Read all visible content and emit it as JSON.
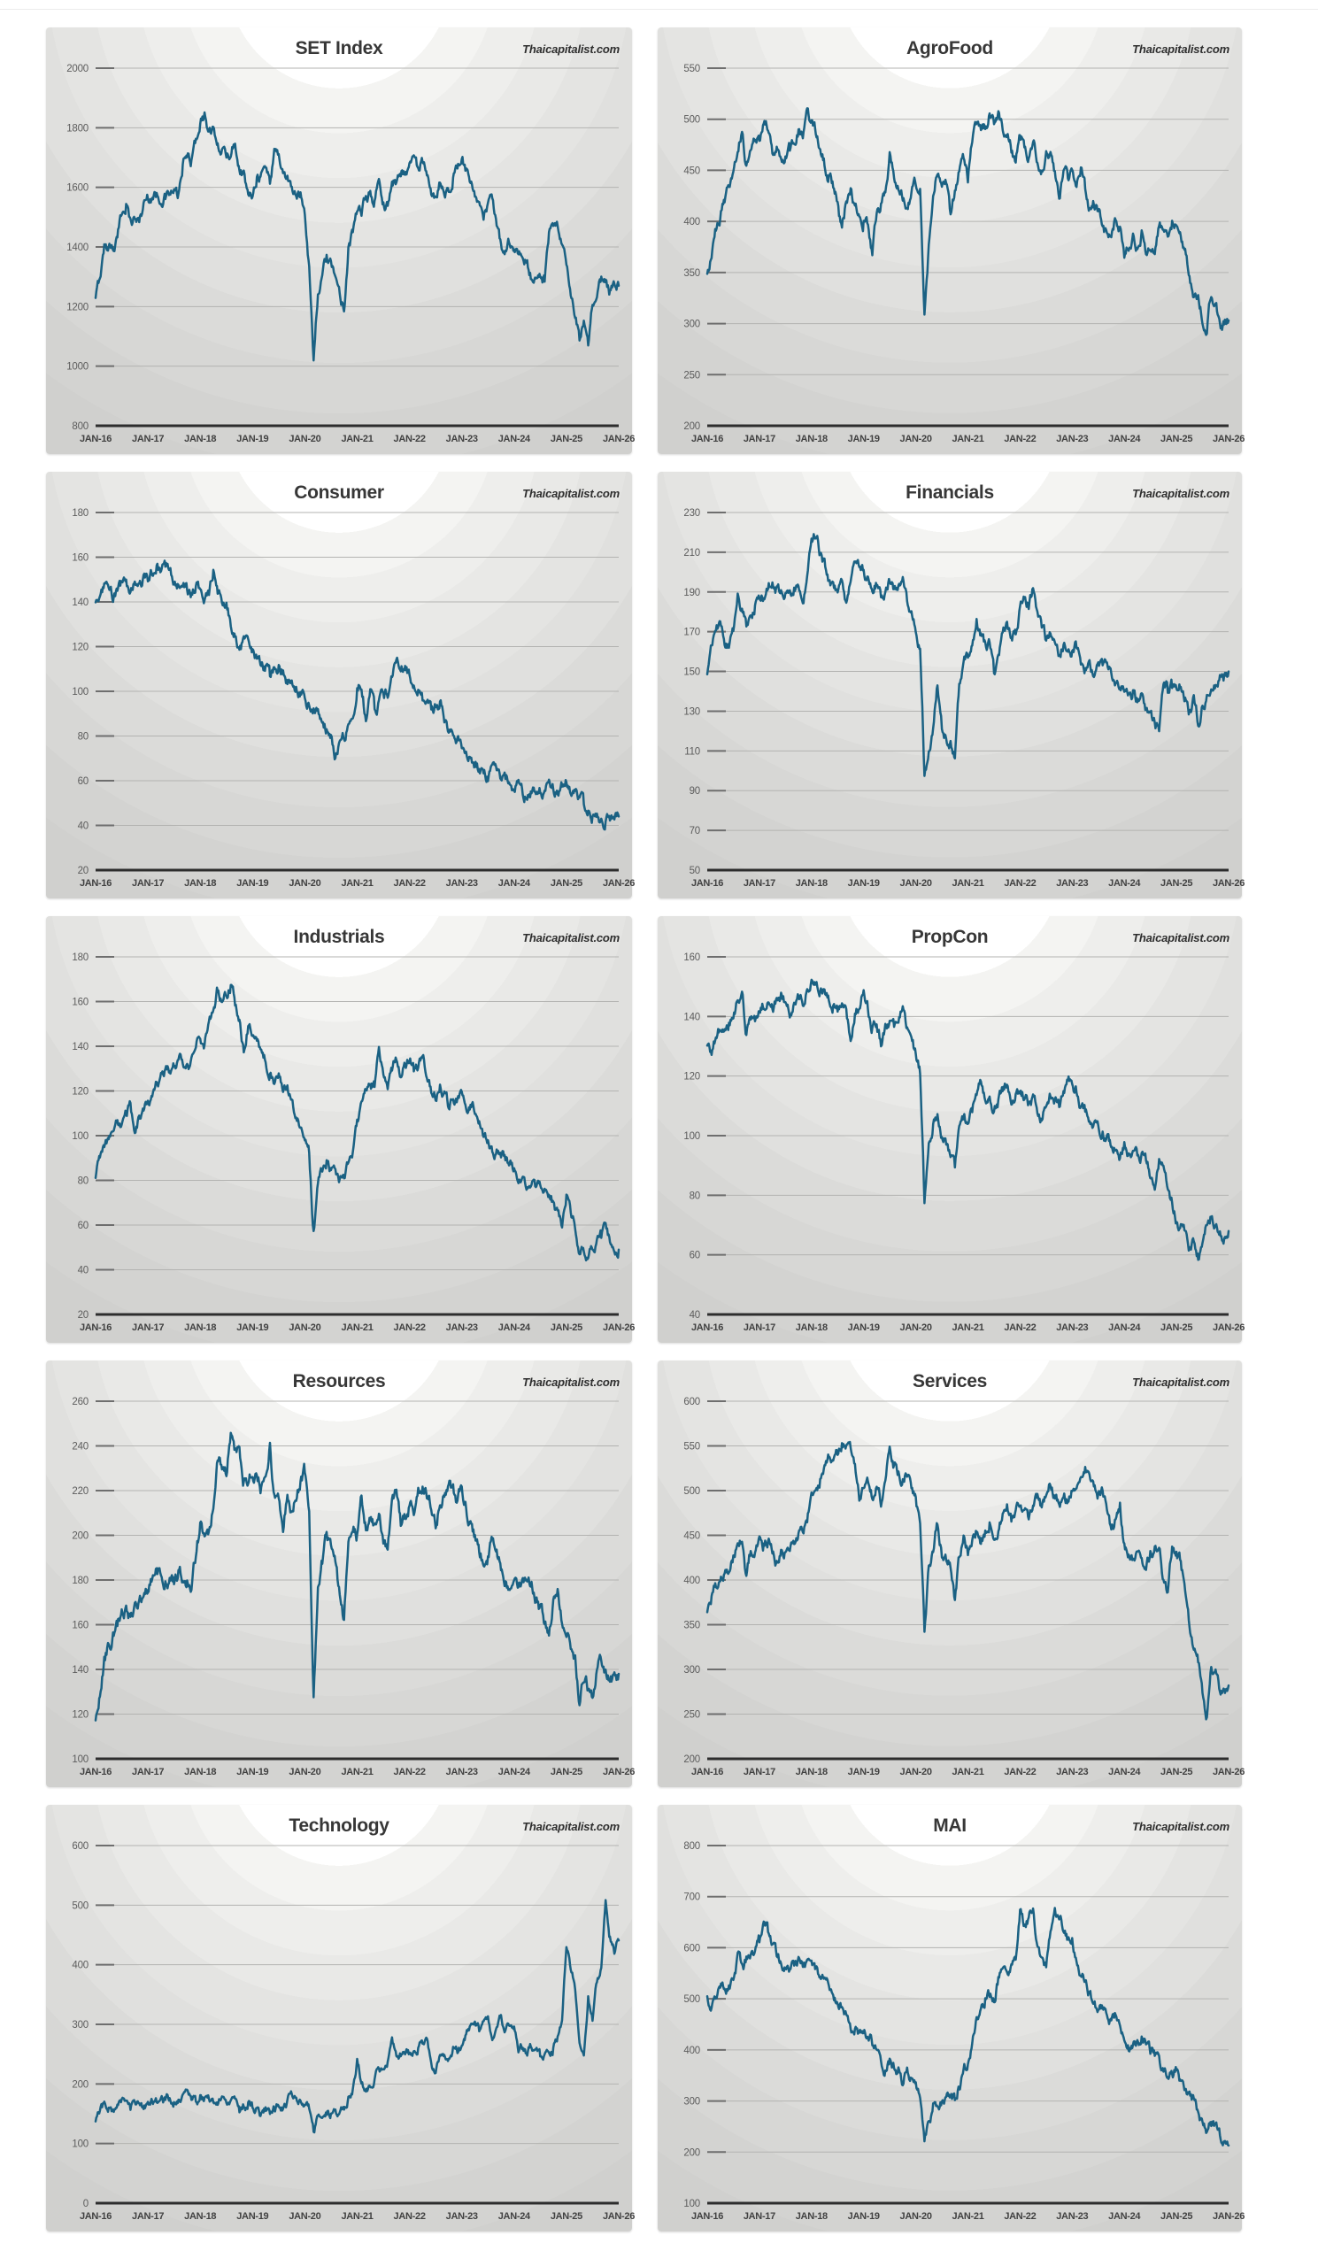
{
  "page": {
    "watermark": "Thaicapitalist.com"
  },
  "x_labels": [
    "JAN-16",
    "JAN-17",
    "JAN-18",
    "JAN-19",
    "JAN-20",
    "JAN-21",
    "JAN-22",
    "JAN-23",
    "JAN-24",
    "JAN-25",
    "JAN-26"
  ],
  "line_color": "#1a6183",
  "chart_data": [
    {
      "type": "line",
      "title": "SET Index",
      "ylim": [
        800,
        2000
      ],
      "ystep": 200,
      "noise": 15,
      "x_start": "JAN-16",
      "x_end": "JAN-26",
      "x_unit": "month",
      "monthly_values": [
        1220,
        1300,
        1400,
        1405,
        1400,
        1430,
        1510,
        1550,
        1480,
        1500,
        1490,
        1540,
        1570,
        1575,
        1570,
        1565,
        1570,
        1575,
        1580,
        1565,
        1670,
        1700,
        1690,
        1750,
        1825,
        1840,
        1780,
        1780,
        1760,
        1720,
        1700,
        1720,
        1750,
        1670,
        1650,
        1560,
        1590,
        1640,
        1640,
        1670,
        1620,
        1730,
        1710,
        1650,
        1630,
        1600,
        1560,
        1580,
        1520,
        1340,
        1020,
        1250,
        1300,
        1360,
        1330,
        1310,
        1240,
        1200,
        1400,
        1450,
        1520,
        1500,
        1570,
        1580,
        1550,
        1620,
        1540,
        1545,
        1610,
        1620,
        1650,
        1660,
        1680,
        1700,
        1660,
        1690,
        1630,
        1560,
        1550,
        1630,
        1590,
        1600,
        1630,
        1670,
        1690,
        1650,
        1600,
        1560,
        1530,
        1500,
        1550,
        1540,
        1480,
        1400,
        1380,
        1415,
        1380,
        1370,
        1360,
        1350,
        1300,
        1290,
        1310,
        1290,
        1450,
        1470,
        1450,
        1400,
        1340,
        1250,
        1160,
        1080,
        1150,
        1060,
        1200,
        1250,
        1290,
        1300,
        1250,
        1260,
        1270
      ]
    },
    {
      "type": "line",
      "title": "AgroFood",
      "ylim": [
        200,
        550
      ],
      "ystep": 50,
      "noise": 4.5,
      "x_start": "JAN-16",
      "x_end": "JAN-26",
      "x_unit": "month",
      "monthly_values": [
        345,
        365,
        390,
        405,
        420,
        435,
        455,
        470,
        490,
        455,
        470,
        478,
        482,
        500,
        492,
        470,
        478,
        468,
        462,
        470,
        478,
        488,
        480,
        505,
        498,
        488,
        470,
        458,
        445,
        432,
        420,
        388,
        418,
        428,
        415,
        408,
        400,
        395,
        372,
        408,
        415,
        428,
        465,
        445,
        432,
        422,
        418,
        428,
        436,
        440,
        305,
        372,
        428,
        448,
        432,
        440,
        402,
        428,
        452,
        462,
        440,
        478,
        495,
        482,
        492,
        505,
        498,
        508,
        492,
        485,
        470,
        458,
        488,
        475,
        462,
        480,
        462,
        452,
        470,
        465,
        445,
        425,
        448,
        440,
        452,
        440,
        455,
        430,
        415,
        420,
        408,
        398,
        385,
        390,
        405,
        395,
        362,
        375,
        385,
        374,
        390,
        372,
        376,
        366,
        398,
        396,
        386,
        398,
        395,
        382,
        370,
        346,
        330,
        326,
        305,
        290,
        330,
        320,
        300,
        297,
        303
      ]
    },
    {
      "type": "line",
      "title": "Consumer",
      "ylim": [
        20,
        180
      ],
      "ystep": 20,
      "noise": 2,
      "x_start": "JAN-16",
      "x_end": "JAN-26",
      "x_unit": "month",
      "monthly_values": [
        140,
        142,
        146,
        144,
        142,
        144,
        147,
        150,
        143,
        148,
        150,
        151,
        150,
        154,
        156,
        152,
        155,
        157,
        148,
        147,
        146,
        145,
        144,
        146,
        145,
        143,
        141,
        153,
        143,
        140,
        138,
        130,
        126,
        118,
        122,
        124,
        119,
        114,
        112,
        110,
        107,
        109,
        112,
        110,
        105,
        107,
        103,
        100,
        97,
        94,
        92,
        90,
        88,
        84,
        82,
        72,
        78,
        80,
        85,
        88,
        101,
        103,
        88,
        104,
        91,
        95,
        97,
        99,
        105,
        112,
        110,
        113,
        108,
        103,
        100,
        97,
        95,
        90,
        93,
        94,
        88,
        83,
        82,
        80,
        76,
        72,
        70,
        68,
        65,
        64,
        62,
        67,
        66,
        63,
        62,
        60,
        57,
        58,
        55,
        54,
        56,
        55,
        56,
        55,
        58,
        57,
        56,
        58,
        60,
        55,
        53,
        51,
        49,
        47,
        45,
        44,
        42,
        41,
        43,
        43,
        44
      ]
    },
    {
      "type": "line",
      "title": "Financials",
      "ylim": [
        50,
        230
      ],
      "ystep": 20,
      "noise": 2.3,
      "x_start": "JAN-16",
      "x_end": "JAN-26",
      "x_unit": "month",
      "monthly_values": [
        149,
        160,
        170,
        175,
        164,
        162,
        172,
        188,
        181,
        172,
        180,
        183,
        185,
        188,
        192,
        196,
        191,
        190,
        192,
        188,
        193,
        191,
        186,
        196,
        214,
        219,
        209,
        204,
        195,
        192,
        190,
        196,
        186,
        198,
        202,
        204,
        200,
        196,
        192,
        196,
        188,
        192,
        196,
        190,
        194,
        196,
        185,
        178,
        172,
        162,
        98,
        112,
        122,
        143,
        122,
        118,
        114,
        108,
        142,
        152,
        158,
        164,
        175,
        167,
        162,
        164,
        150,
        157,
        167,
        172,
        165,
        168,
        180,
        188,
        184,
        192,
        180,
        172,
        165,
        168,
        162,
        158,
        164,
        162,
        160,
        162,
        155,
        152,
        155,
        150,
        155,
        152,
        157,
        148,
        145,
        142,
        140,
        138,
        140,
        135,
        138,
        132,
        130,
        124,
        121,
        143,
        140,
        142,
        143,
        145,
        139,
        130,
        135,
        123,
        132,
        138,
        142,
        144,
        147,
        148,
        150
      ]
    },
    {
      "type": "line",
      "title": "Industrials",
      "ylim": [
        20,
        180
      ],
      "ystep": 20,
      "noise": 2,
      "x_start": "JAN-16",
      "x_end": "JAN-26",
      "x_unit": "month",
      "monthly_values": [
        83,
        88,
        95,
        97,
        103,
        107,
        104,
        110,
        115,
        100,
        107,
        110,
        113,
        118,
        122,
        127,
        130,
        128,
        130,
        132,
        133,
        131,
        133,
        140,
        145,
        142,
        150,
        155,
        165,
        158,
        162,
        167,
        159,
        150,
        136,
        149,
        147,
        143,
        138,
        134,
        128,
        124,
        129,
        120,
        122,
        114,
        109,
        103,
        100,
        94,
        57,
        78,
        85,
        88,
        85,
        87,
        82,
        80,
        86,
        93,
        105,
        113,
        118,
        121,
        123,
        138,
        128,
        122,
        130,
        135,
        129,
        133,
        135,
        130,
        132,
        136,
        128,
        120,
        118,
        125,
        120,
        113,
        118,
        115,
        117,
        113,
        115,
        110,
        105,
        100,
        97,
        93,
        92,
        88,
        90,
        87,
        85,
        80,
        82,
        78,
        80,
        77,
        78,
        75,
        72,
        70,
        64,
        60,
        73,
        64,
        58,
        48,
        47,
        45,
        50,
        52,
        55,
        58,
        50,
        48,
        49
      ]
    },
    {
      "type": "line",
      "title": "PropCon",
      "ylim": [
        40,
        160
      ],
      "ystep": 20,
      "noise": 1.5,
      "x_start": "JAN-16",
      "x_end": "JAN-26",
      "x_unit": "month",
      "monthly_values": [
        131,
        128,
        133,
        136,
        138,
        137,
        140,
        145,
        148,
        134,
        140,
        138,
        142,
        144,
        145,
        143,
        145,
        147,
        144,
        140,
        145,
        148,
        145,
        150,
        152,
        153,
        148,
        150,
        146,
        143,
        142,
        145,
        143,
        132,
        140,
        144,
        148,
        143,
        136,
        138,
        130,
        137,
        138,
        136,
        138,
        143,
        135,
        131,
        127,
        121,
        78,
        98,
        104,
        107,
        100,
        98,
        92,
        88,
        103,
        106,
        104,
        109,
        114,
        118,
        111,
        114,
        107,
        111,
        115,
        118,
        112,
        114,
        115,
        113,
        110,
        112,
        108,
        107,
        110,
        114,
        112,
        110,
        115,
        118,
        118,
        115,
        110,
        108,
        105,
        103,
        104,
        102,
        100,
        95,
        97,
        94,
        98,
        94,
        95,
        92,
        93,
        90,
        86,
        83,
        92,
        88,
        82,
        78,
        72,
        69,
        67,
        61,
        64,
        59,
        66,
        70,
        74,
        70,
        67,
        66,
        68
      ]
    },
    {
      "type": "line",
      "title": "Resources",
      "ylim": [
        100,
        260
      ],
      "ystep": 20,
      "noise": 2.4,
      "x_start": "JAN-16",
      "x_end": "JAN-26",
      "x_unit": "month",
      "monthly_values": [
        118,
        130,
        146,
        150,
        155,
        160,
        165,
        168,
        163,
        170,
        172,
        170,
        175,
        182,
        188,
        183,
        180,
        182,
        180,
        183,
        180,
        178,
        176,
        190,
        204,
        199,
        202,
        214,
        234,
        231,
        229,
        249,
        239,
        240,
        224,
        221,
        229,
        227,
        221,
        229,
        241,
        217,
        214,
        200,
        219,
        211,
        217,
        224,
        229,
        211,
        129,
        175,
        188,
        204,
        193,
        185,
        172,
        160,
        199,
        205,
        200,
        218,
        204,
        209,
        204,
        211,
        199,
        194,
        214,
        217,
        204,
        209,
        214,
        209,
        219,
        224,
        219,
        214,
        204,
        214,
        219,
        225,
        221,
        214,
        219,
        214,
        204,
        199,
        194,
        189,
        191,
        196,
        194,
        184,
        179,
        177,
        179,
        177,
        181,
        179,
        177,
        171,
        167,
        161,
        157,
        171,
        174,
        161,
        154,
        149,
        144,
        127,
        137,
        131,
        127,
        141,
        145,
        141,
        135,
        136,
        138
      ]
    },
    {
      "type": "line",
      "title": "Services",
      "ylim": [
        200,
        600
      ],
      "ystep": 50,
      "noise": 5,
      "x_start": "JAN-16",
      "x_end": "JAN-26",
      "x_unit": "month",
      "monthly_values": [
        362,
        378,
        395,
        405,
        410,
        415,
        425,
        440,
        448,
        405,
        432,
        438,
        444,
        438,
        444,
        434,
        420,
        430,
        434,
        430,
        444,
        454,
        450,
        464,
        498,
        508,
        514,
        528,
        540,
        534,
        540,
        550,
        555,
        544,
        528,
        494,
        502,
        510,
        494,
        508,
        484,
        504,
        545,
        528,
        518,
        512,
        518,
        504,
        488,
        458,
        340,
        420,
        430,
        464,
        428,
        424,
        418,
        375,
        428,
        448,
        428,
        448,
        458,
        438,
        454,
        468,
        444,
        458,
        474,
        484,
        468,
        478,
        488,
        478,
        468,
        484,
        494,
        478,
        488,
        508,
        494,
        478,
        498,
        488,
        504,
        498,
        508,
        528,
        514,
        498,
        494,
        498,
        478,
        454,
        468,
        484,
        438,
        428,
        418,
        434,
        428,
        414,
        428,
        434,
        438,
        400,
        384,
        432,
        428,
        418,
        388,
        348,
        328,
        308,
        278,
        250,
        304,
        298,
        272,
        276,
        282
      ]
    },
    {
      "type": "line",
      "title": "Technology",
      "ylim": [
        0,
        600
      ],
      "ystep": 100,
      "noise": 5.5,
      "x_start": "JAN-16",
      "x_end": "JAN-26",
      "x_unit": "month",
      "monthly_values": [
        140,
        155,
        165,
        160,
        154,
        164,
        174,
        164,
        158,
        170,
        164,
        161,
        164,
        169,
        171,
        174,
        171,
        174,
        171,
        177,
        181,
        184,
        174,
        171,
        179,
        174,
        179,
        174,
        171,
        177,
        171,
        174,
        169,
        154,
        164,
        167,
        161,
        157,
        149,
        157,
        151,
        159,
        164,
        157,
        171,
        179,
        184,
        174,
        167,
        158,
        118,
        141,
        148,
        154,
        151,
        154,
        149,
        157,
        174,
        194,
        238,
        204,
        189,
        199,
        214,
        224,
        229,
        234,
        274,
        239,
        249,
        254,
        249,
        254,
        259,
        269,
        274,
        229,
        224,
        249,
        254,
        244,
        259,
        254,
        264,
        284,
        294,
        299,
        289,
        304,
        314,
        269,
        294,
        309,
        289,
        304,
        299,
        254,
        259,
        249,
        264,
        259,
        244,
        249,
        254,
        259,
        279,
        309,
        424,
        395,
        360,
        268,
        255,
        345,
        310,
        370,
        400,
        505,
        445,
        420,
        441
      ]
    },
    {
      "type": "line",
      "title": "MAI",
      "ylim": [
        100,
        800
      ],
      "ystep": 100,
      "noise": 8.5,
      "x_start": "JAN-16",
      "x_end": "JAN-26",
      "x_unit": "month",
      "monthly_values": [
        505,
        495,
        510,
        520,
        525,
        520,
        540,
        580,
        560,
        575,
        590,
        600,
        615,
        645,
        630,
        605,
        585,
        575,
        565,
        555,
        570,
        575,
        560,
        570,
        575,
        560,
        545,
        535,
        530,
        510,
        495,
        480,
        470,
        430,
        445,
        430,
        445,
        430,
        415,
        400,
        380,
        360,
        375,
        365,
        360,
        340,
        360,
        345,
        330,
        315,
        210,
        260,
        290,
        300,
        300,
        305,
        310,
        305,
        330,
        360,
        380,
        420,
        460,
        480,
        500,
        510,
        500,
        540,
        560,
        555,
        570,
        580,
        680,
        640,
        660,
        690,
        600,
        580,
        560,
        640,
        690,
        650,
        640,
        610,
        615,
        570,
        555,
        540,
        510,
        490,
        480,
        490,
        465,
        450,
        470,
        455,
        410,
        400,
        415,
        410,
        425,
        420,
        400,
        390,
        380,
        360,
        340,
        355,
        360,
        340,
        330,
        310,
        300,
        280,
        260,
        245,
        255,
        250,
        230,
        220,
        213
      ]
    }
  ]
}
